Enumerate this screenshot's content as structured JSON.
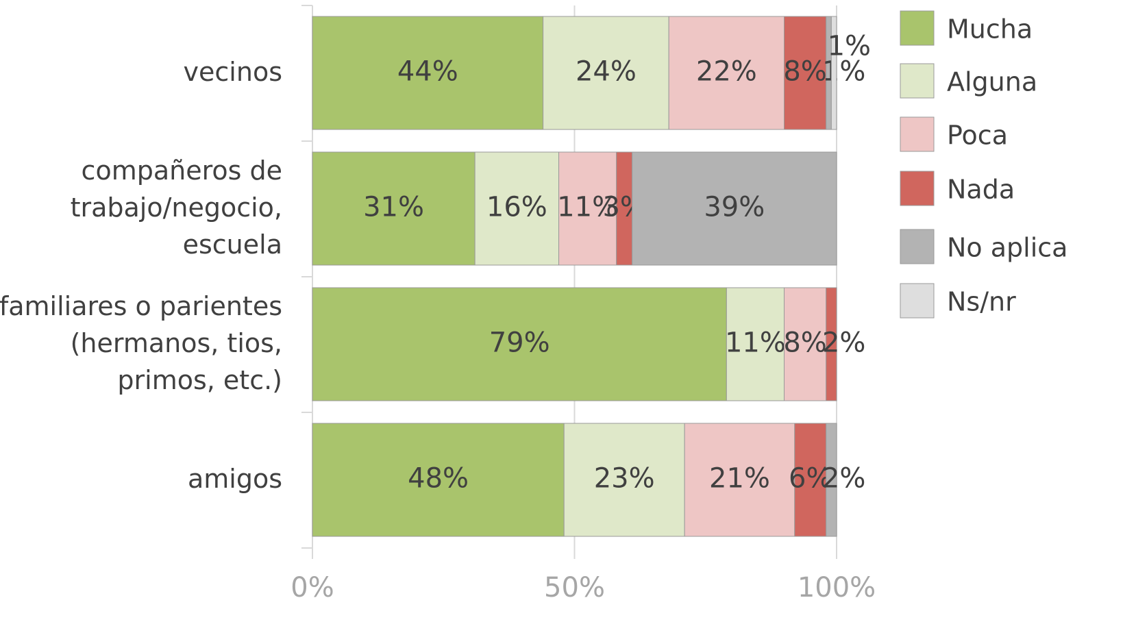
{
  "chart_data": {
    "type": "stacked-bar-horizontal",
    "categories": [
      [
        "vecinos"
      ],
      [
        "compañeros de",
        "trabajo/negocio,",
        "escuela"
      ],
      [
        "familiares o parientes",
        "(hermanos, tios,",
        "primos, etc.)"
      ],
      [
        "amigos"
      ]
    ],
    "series": [
      {
        "name": "Mucha",
        "color": "#a9c46c",
        "values": [
          44,
          31,
          79,
          48
        ],
        "value_labels": [
          "44%",
          "31%",
          "79%",
          "48%"
        ]
      },
      {
        "name": "Alguna",
        "color": "#dfe8c9",
        "values": [
          24,
          16,
          11,
          23
        ],
        "value_labels": [
          "24%",
          "16%",
          "11%",
          "23%"
        ]
      },
      {
        "name": "Poca",
        "color": "#eec6c5",
        "values": [
          22,
          11,
          8,
          21
        ],
        "value_labels": [
          "22%",
          "11%",
          "8%",
          "21%"
        ]
      },
      {
        "name": "Nada",
        "color": "#d0665e",
        "values": [
          8,
          3,
          2,
          6
        ],
        "value_labels": [
          "8%",
          "3%",
          "2%",
          "6%"
        ]
      },
      {
        "name": "No aplica",
        "color": "#b3b3b3",
        "values": [
          1,
          39,
          null,
          2
        ],
        "value_labels": [
          "1%",
          "39%",
          null,
          "2%"
        ]
      },
      {
        "name": "Ns/nr",
        "color": "#dedede",
        "values": [
          1,
          null,
          null,
          null
        ],
        "value_labels": [
          "1%",
          null,
          null,
          null
        ]
      }
    ],
    "xlim": [
      0,
      100
    ],
    "xticks": [
      {
        "value": 0,
        "label": "0%"
      },
      {
        "value": 50,
        "label": "50%"
      },
      {
        "value": 100,
        "label": "100%"
      }
    ],
    "grid": true,
    "legend": "right"
  }
}
